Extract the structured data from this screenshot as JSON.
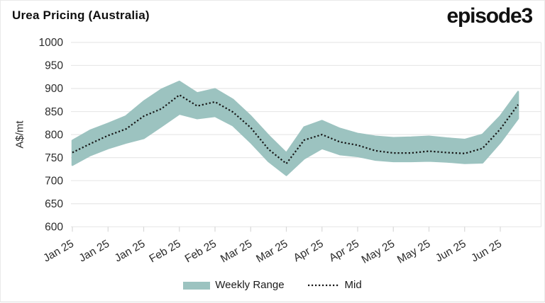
{
  "header": {
    "title": "Urea Pricing (Australia)",
    "logo": "episode3"
  },
  "chart_data": {
    "type": "area",
    "title": "Urea Pricing (Australia)",
    "ylabel": "A$/mt",
    "ylim": [
      600,
      1000
    ],
    "yticks": [
      1000,
      950,
      900,
      850,
      800,
      750,
      700,
      650,
      600
    ],
    "grid": "horizontal-only",
    "legend_position": "bottom-center",
    "n_points": 26,
    "points_per_tick": 2,
    "xtick_labels": [
      "Jan 25",
      "Jan 25",
      "Jan 25",
      "Feb 25",
      "Feb 25",
      "Mar 25",
      "Mar 25",
      "Apr 25",
      "Apr 25",
      "May 25",
      "May 25",
      "Jun 25",
      "Jun 25"
    ],
    "series": [
      {
        "name": "Weekly Range",
        "type": "band",
        "color": "#9cc3c0",
        "low": [
          734,
          755,
          770,
          782,
          792,
          818,
          845,
          835,
          840,
          820,
          783,
          742,
          712,
          748,
          770,
          757,
          753,
          745,
          742,
          742,
          743,
          741,
          738,
          739,
          783,
          835
        ],
        "high": [
          787,
          809,
          824,
          840,
          872,
          898,
          915,
          890,
          899,
          876,
          840,
          798,
          760,
          816,
          830,
          813,
          802,
          796,
          793,
          794,
          796,
          792,
          789,
          800,
          840,
          893
        ]
      },
      {
        "name": "Mid",
        "type": "line",
        "style": "dotted",
        "color": "#161616",
        "values": [
          761,
          780,
          798,
          812,
          840,
          856,
          886,
          862,
          871,
          849,
          815,
          768,
          737,
          788,
          800,
          784,
          777,
          765,
          760,
          760,
          764,
          761,
          759,
          770,
          812,
          865
        ]
      }
    ]
  },
  "legend": {
    "items": [
      {
        "label": "Weekly Range",
        "swatch": "band",
        "color": "#9cc3c0"
      },
      {
        "label": "Mid",
        "swatch": "dotted-line",
        "color": "#161616"
      }
    ]
  },
  "colors": {
    "background": "#ffffff",
    "band": "#9cc3c0",
    "mid_line": "#161616",
    "gridline": "#e8e8e8",
    "tick": "#d8d8d8",
    "axis_text": "#2b2b2b",
    "title_text": "#0f0f0f"
  }
}
